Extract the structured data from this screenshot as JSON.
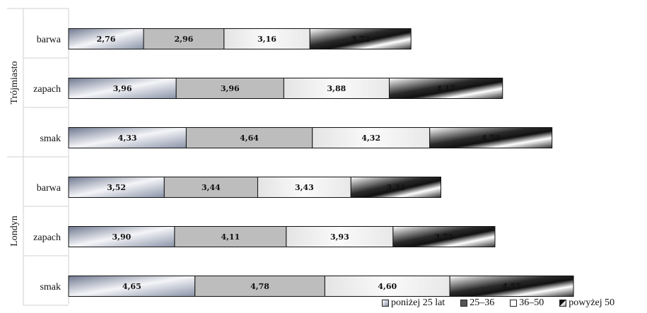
{
  "chart_data": {
    "type": "bar",
    "orientation": "horizontal",
    "stacked": true,
    "groups": [
      {
        "name": "Trójmiasto",
        "categories": [
          "barwa",
          "zapach",
          "smak"
        ]
      },
      {
        "name": "Londyn",
        "categories": [
          "barwa",
          "zapach",
          "smak"
        ]
      }
    ],
    "series": [
      {
        "name": "poniżej 25 lat",
        "values": [
          2.76,
          3.96,
          4.33,
          3.52,
          3.9,
          4.65
        ]
      },
      {
        "name": "25–36",
        "values": [
          2.96,
          3.96,
          4.64,
          3.44,
          4.11,
          4.78
        ]
      },
      {
        "name": "36–50",
        "values": [
          3.16,
          3.88,
          4.32,
          3.43,
          3.93,
          4.6
        ]
      },
      {
        "name": "powyżej 50",
        "values": [
          3.72,
          4.17,
          4.5,
          3.31,
          3.75,
          4.55
        ]
      }
    ],
    "value_labels": [
      [
        "2,76",
        "3,96",
        "4,33",
        "3,52",
        "3,90",
        "4,65"
      ],
      [
        "2,96",
        "3,96",
        "4,64",
        "3,44",
        "4,11",
        "4,78"
      ],
      [
        "3,16",
        "3,88",
        "4,32",
        "3,43",
        "3,93",
        "4,60"
      ],
      [
        "3,72",
        "4,17",
        "4,50",
        "3,31",
        "3,75",
        "4,55"
      ]
    ],
    "title": "",
    "xlabel": "",
    "ylabel": "",
    "grid": false,
    "legend_position": "bottom-right",
    "colors": [
      "#8a93a8",
      "#bdbdbd",
      "#f2f2f2",
      "#222222"
    ]
  }
}
